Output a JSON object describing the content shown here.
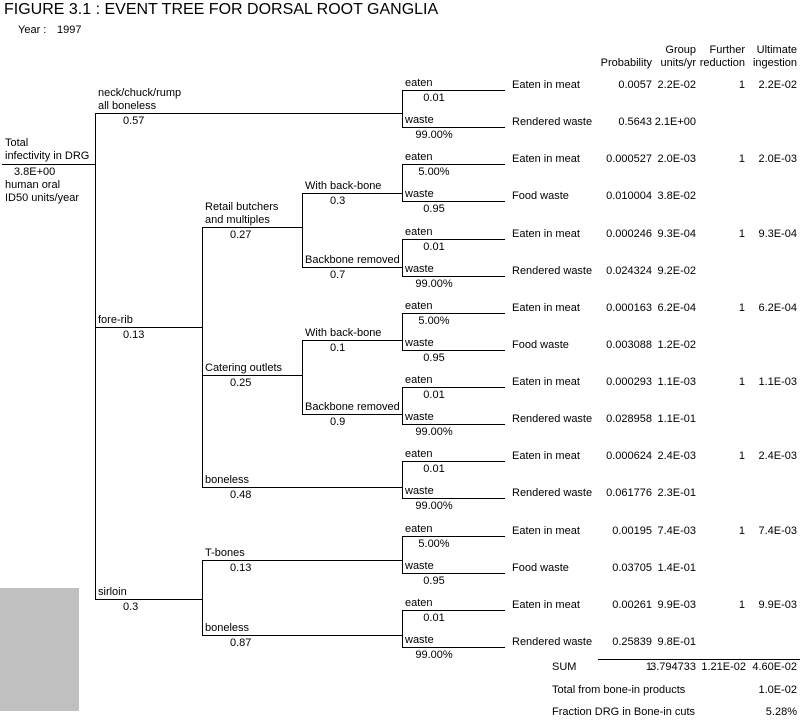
{
  "title": "FIGURE 3.1 : EVENT TREE FOR DORSAL ROOT GANGLIA",
  "year": {
    "label": "Year :",
    "value": "1997"
  },
  "columns": {
    "probability": "Probability",
    "group_units": "Group\nunits/yr",
    "further_reduction": "Further\nreduction",
    "ultimate_ingestion": "Ultimate\ningestion"
  },
  "root": {
    "name_line1": "Total",
    "name_line2": "infectivity in DRG",
    "value": "3.8E+00",
    "unit_line1": "human oral",
    "unit_line2": "ID50 units/year"
  },
  "tree": {
    "branches": [
      {
        "label": "neck/chuck/rump",
        "label2": "all boneless",
        "prob": "0.57"
      },
      {
        "label": "fore-rib",
        "prob": "0.13"
      },
      {
        "label": "sirloin",
        "prob": "0.3"
      },
      {
        "label": "Retail butchers",
        "label2": "and multiples",
        "prob": "0.27"
      },
      {
        "label": "Catering outlets",
        "prob": "0.25"
      },
      {
        "label": "boneless",
        "prob": "0.48"
      },
      {
        "label": "T-bones",
        "prob": "0.13"
      },
      {
        "label": "boneless",
        "prob": "0.87"
      },
      {
        "label": "With back-bone",
        "prob": "0.3"
      },
      {
        "label": "Backbone removed",
        "prob": "0.7"
      },
      {
        "label": "With back-bone",
        "prob": "0.1"
      },
      {
        "label": "Backbone removed",
        "prob": "0.9"
      }
    ],
    "leaves": [
      {
        "branch": "eaten",
        "frac": "0.01",
        "outcome": "Eaten in meat",
        "probability": "0.0057",
        "group": "2.2E-02",
        "further": "1",
        "ultimate": "2.2E-02"
      },
      {
        "branch": "waste",
        "frac": "99.00%",
        "outcome": "Rendered waste",
        "probability": "0.5643",
        "group": "2.1E+00",
        "further": "",
        "ultimate": ""
      },
      {
        "branch": "eaten",
        "frac": "5.00%",
        "outcome": "Eaten in meat",
        "probability": "0.000527",
        "group": "2.0E-03",
        "further": "1",
        "ultimate": "2.0E-03"
      },
      {
        "branch": "waste",
        "frac": "0.95",
        "outcome": "Food waste",
        "probability": "0.010004",
        "group": "3.8E-02",
        "further": "",
        "ultimate": ""
      },
      {
        "branch": "eaten",
        "frac": "0.01",
        "outcome": "Eaten in meat",
        "probability": "0.000246",
        "group": "9.3E-04",
        "further": "1",
        "ultimate": "9.3E-04"
      },
      {
        "branch": "waste",
        "frac": "99.00%",
        "outcome": "Rendered waste",
        "probability": "0.024324",
        "group": "9.2E-02",
        "further": "",
        "ultimate": ""
      },
      {
        "branch": "eaten",
        "frac": "5.00%",
        "outcome": "Eaten in meat",
        "probability": "0.000163",
        "group": "6.2E-04",
        "further": "1",
        "ultimate": "6.2E-04"
      },
      {
        "branch": "waste",
        "frac": "0.95",
        "outcome": "Food waste",
        "probability": "0.003088",
        "group": "1.2E-02",
        "further": "",
        "ultimate": ""
      },
      {
        "branch": "eaten",
        "frac": "0.01",
        "outcome": "Eaten in meat",
        "probability": "0.000293",
        "group": "1.1E-03",
        "further": "1",
        "ultimate": "1.1E-03"
      },
      {
        "branch": "waste",
        "frac": "99.00%",
        "outcome": "Rendered waste",
        "probability": "0.028958",
        "group": "1.1E-01",
        "further": "",
        "ultimate": ""
      },
      {
        "branch": "eaten",
        "frac": "0.01",
        "outcome": "Eaten in meat",
        "probability": "0.000624",
        "group": "2.4E-03",
        "further": "1",
        "ultimate": "2.4E-03"
      },
      {
        "branch": "waste",
        "frac": "99.00%",
        "outcome": "Rendered waste",
        "probability": "0.061776",
        "group": "2.3E-01",
        "further": "",
        "ultimate": ""
      },
      {
        "branch": "eaten",
        "frac": "5.00%",
        "outcome": "Eaten in meat",
        "probability": "0.00195",
        "group": "7.4E-03",
        "further": "1",
        "ultimate": "7.4E-03"
      },
      {
        "branch": "waste",
        "frac": "0.95",
        "outcome": "Food waste",
        "probability": "0.03705",
        "group": "1.4E-01",
        "further": "",
        "ultimate": ""
      },
      {
        "branch": "eaten",
        "frac": "0.01",
        "outcome": "Eaten in meat",
        "probability": "0.00261",
        "group": "9.9E-03",
        "further": "1",
        "ultimate": "9.9E-03"
      },
      {
        "branch": "waste",
        "frac": "99.00%",
        "outcome": "Rendered waste",
        "probability": "0.25839",
        "group": "9.8E-01",
        "further": "",
        "ultimate": ""
      }
    ]
  },
  "summary": {
    "sum_label": "SUM",
    "sum_probability": "1",
    "sum_group": "3.794733",
    "sum_further": "1.21E-02",
    "sum_ultimate": "4.60E-02",
    "total_bonein_label": "Total from bone-in products",
    "total_bonein_value": "1.0E-02",
    "fraction_label": "Fraction DRG in Bone-in cuts",
    "fraction_value": "5.28%"
  },
  "colors": {
    "bottom_left_block": "#c0c0c0"
  }
}
